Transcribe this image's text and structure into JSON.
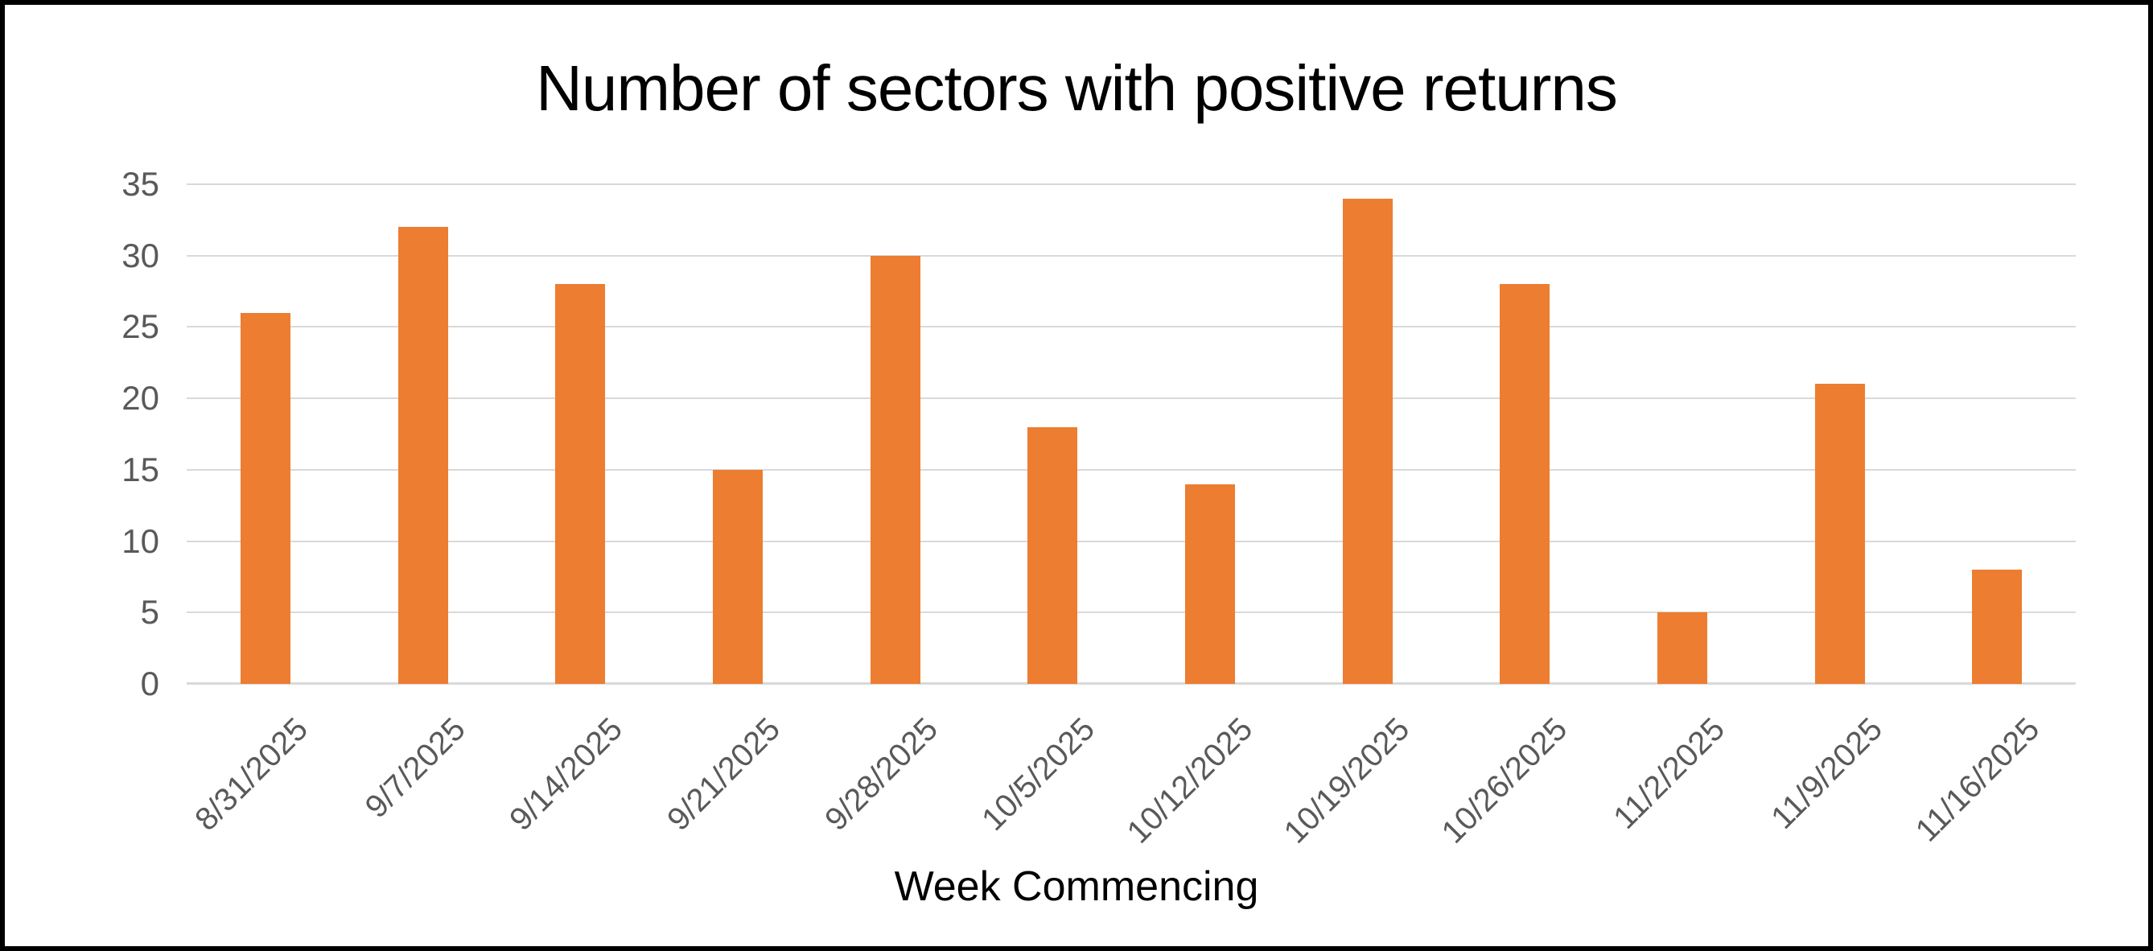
{
  "chart_data": {
    "type": "bar",
    "title": "Number of sectors with positive returns",
    "xlabel": "Week Commencing",
    "ylabel": "",
    "categories": [
      "8/31/2025",
      "9/7/2025",
      "9/14/2025",
      "9/21/2025",
      "9/28/2025",
      "10/5/2025",
      "10/12/2025",
      "10/19/2025",
      "10/26/2025",
      "11/2/2025",
      "11/9/2025",
      "11/16/2025"
    ],
    "values": [
      26,
      32,
      28,
      15,
      30,
      18,
      14,
      34,
      28,
      5,
      21,
      8
    ],
    "ylim": [
      0,
      35
    ],
    "ytick_step": 5,
    "yticks": [
      0,
      5,
      10,
      15,
      20,
      25,
      30,
      35
    ],
    "grid": true,
    "legend": "none",
    "colors": {
      "bar": "#ED7D31",
      "gridline": "#D9D9D9",
      "axis_line": "#D9D9D9",
      "tick_label": "#595959",
      "title_text": "#000000",
      "background": "#FFFFFF",
      "frame_border": "#000000"
    }
  }
}
